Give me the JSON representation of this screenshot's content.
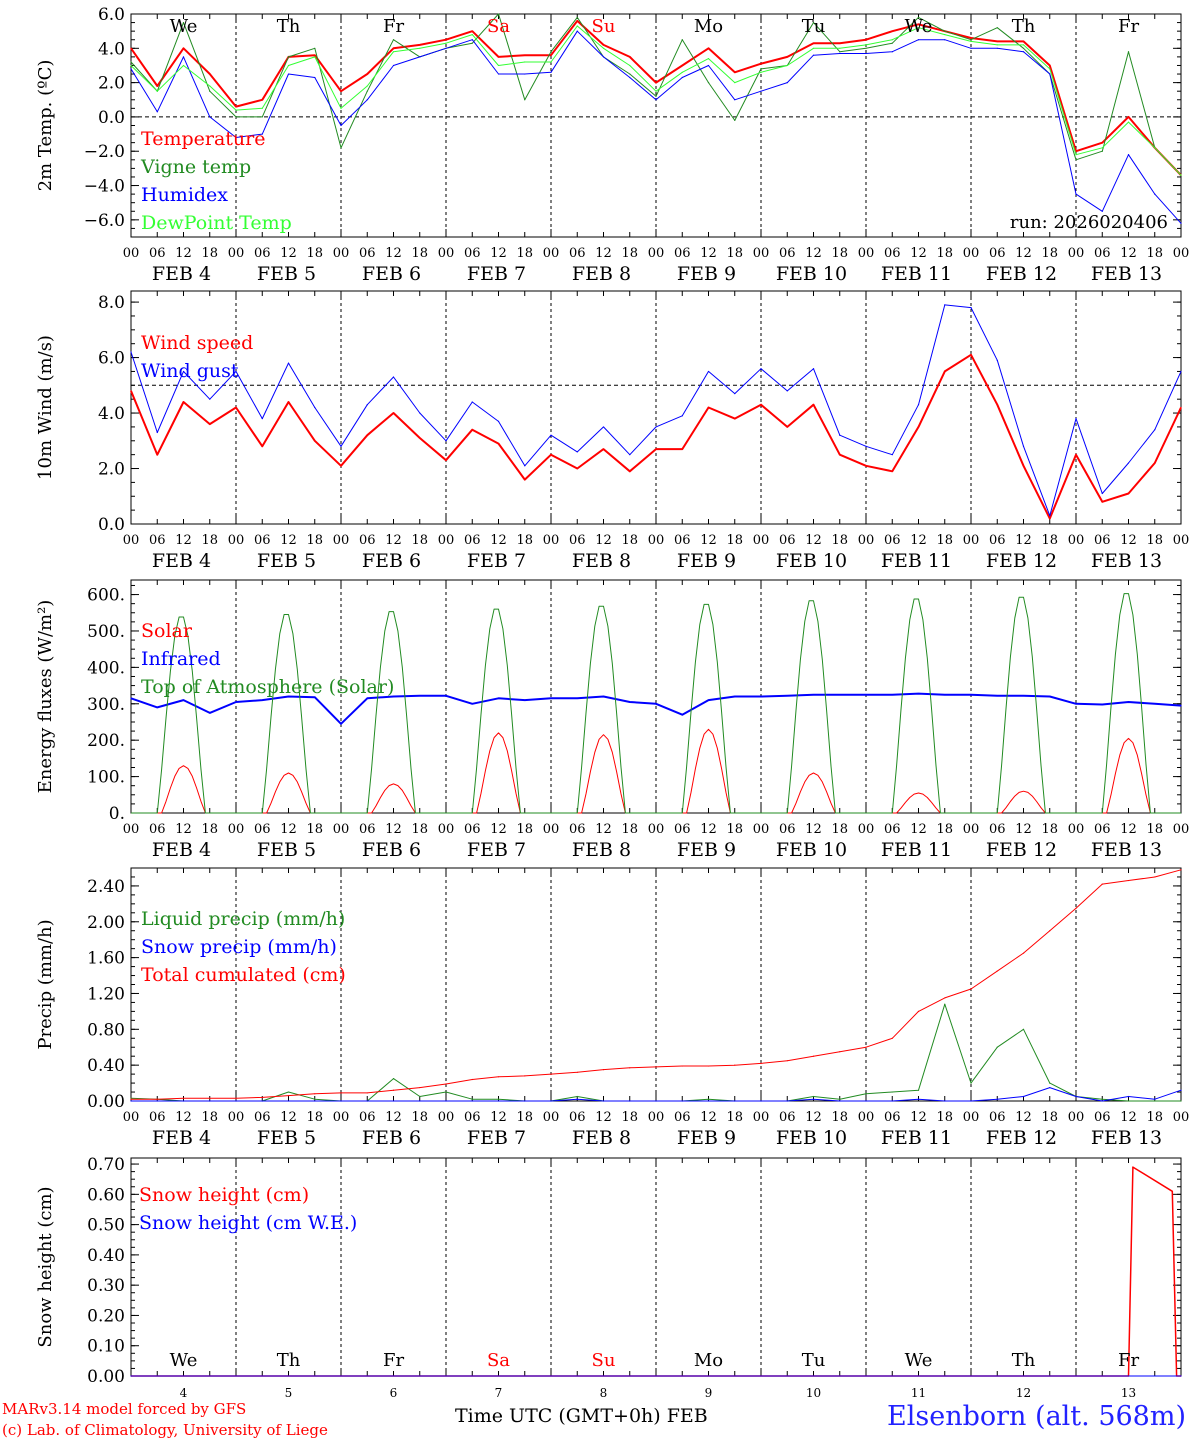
{
  "days": [
    "We",
    "Th",
    "Fr",
    "Sa",
    "Su",
    "Mo",
    "Tu",
    "We",
    "Th",
    "Fr"
  ],
  "weekend_color": "#ff0000",
  "date_labels": [
    "FEB  4",
    "FEB  5",
    "FEB  6",
    "FEB  7",
    "FEB  8",
    "FEB  9",
    "FEB 10",
    "FEB 11",
    "FEB 12",
    "FEB 13"
  ],
  "hour_ticks": [
    "00",
    "06",
    "12",
    "18"
  ],
  "final_hour_tick": "00",
  "bottom_day_numbers": [
    "4",
    "5",
    "6",
    "7",
    "8",
    "9",
    "10",
    "11",
    "12",
    "13"
  ],
  "footer": {
    "model": "MARv3.14 model forced by GFS",
    "credit": "(c) Lab. of Climatology, University of Liege",
    "axis_title": "Time UTC (GMT+0h) FEB",
    "station": "Elsenborn (alt. 568m)"
  },
  "chart_data": [
    {
      "type": "line",
      "ylabel": "2m Temp. (ºC)",
      "ylim": [
        -7,
        6
      ],
      "yticks": [
        "6.0",
        "4.0",
        "2.0",
        "0.0",
        "−2.0",
        "−4.0",
        "−6.0"
      ],
      "ytick_values": [
        6,
        4,
        2,
        0,
        -2,
        -4,
        -6
      ],
      "ref_line": 0,
      "run_label": "run: 2026020406",
      "x_hours": [
        0,
        6,
        12,
        18,
        24,
        30,
        36,
        42,
        48,
        54,
        60,
        66,
        72,
        78,
        84,
        90,
        96,
        102,
        108,
        114,
        120,
        126,
        132,
        138,
        144,
        150,
        156,
        162,
        168,
        174,
        180,
        186,
        192,
        198,
        204,
        210,
        216,
        222,
        228,
        234,
        240
      ],
      "series": [
        {
          "name": "Temperature",
          "color": "#ff0000",
          "width": 2,
          "values": [
            4.0,
            1.8,
            4.0,
            2.5,
            0.6,
            1.0,
            3.5,
            3.6,
            1.5,
            2.5,
            4.0,
            4.2,
            4.5,
            5.0,
            3.5,
            3.6,
            3.6,
            5.6,
            4.2,
            3.5,
            2.0,
            3.0,
            4.0,
            2.6,
            3.1,
            3.5,
            4.3,
            4.3,
            4.5,
            5.0,
            5.4,
            5.0,
            4.6,
            4.4,
            4.4,
            3.0,
            -2.0,
            -1.5,
            0.0,
            -1.8,
            -3.4
          ]
        },
        {
          "name": "Vigne temp",
          "color": "#228b22",
          "width": 1,
          "values": [
            3.2,
            1.5,
            5.5,
            1.5,
            0.0,
            0.0,
            3.5,
            4.0,
            -1.8,
            1.5,
            4.5,
            3.5,
            4.0,
            4.3,
            6.0,
            1.0,
            3.8,
            5.8,
            3.5,
            2.5,
            1.2,
            4.5,
            2.0,
            -0.2,
            2.8,
            3.0,
            5.5,
            3.8,
            4.0,
            4.3,
            5.8,
            5.0,
            4.5,
            5.2,
            4.0,
            2.5,
            -2.5,
            -2.0,
            3.8,
            -1.8,
            -3.4
          ]
        },
        {
          "name": "Humidex",
          "color": "#0000ff",
          "width": 1,
          "values": [
            2.8,
            0.3,
            3.5,
            0.0,
            -1.2,
            -1.0,
            2.5,
            2.3,
            -0.5,
            1.0,
            3.0,
            3.5,
            4.0,
            4.5,
            2.5,
            2.5,
            2.6,
            5.0,
            3.5,
            2.3,
            1.0,
            2.3,
            3.0,
            1.0,
            1.5,
            2.0,
            3.6,
            3.7,
            3.7,
            3.8,
            4.5,
            4.5,
            4.0,
            4.0,
            3.8,
            2.5,
            -4.5,
            -5.5,
            -2.2,
            -4.5,
            -6.2
          ]
        },
        {
          "name": "DewPoint Temp",
          "color": "#33ff33",
          "width": 1,
          "values": [
            3.0,
            1.5,
            3.0,
            1.8,
            0.4,
            0.5,
            3.0,
            3.5,
            0.5,
            1.8,
            3.8,
            4.0,
            4.3,
            4.8,
            3.0,
            3.2,
            3.2,
            5.3,
            4.0,
            3.0,
            1.5,
            2.6,
            3.4,
            2.0,
            2.6,
            3.0,
            4.0,
            4.0,
            4.2,
            4.5,
            5.2,
            4.8,
            4.4,
            4.2,
            4.2,
            2.8,
            -2.2,
            -1.8,
            -0.3,
            -1.8,
            -3.4
          ]
        }
      ]
    },
    {
      "type": "line",
      "ylabel": "10m Wind (m/s)",
      "ylim": [
        0,
        8.4
      ],
      "yticks": [
        "8.0",
        "6.0",
        "4.0",
        "2.0",
        "0.0"
      ],
      "ytick_values": [
        8,
        6,
        4,
        2,
        0
      ],
      "ref_line": 5,
      "x_hours": [
        0,
        6,
        12,
        18,
        24,
        30,
        36,
        42,
        48,
        54,
        60,
        66,
        72,
        78,
        84,
        90,
        96,
        102,
        108,
        114,
        120,
        126,
        132,
        138,
        144,
        150,
        156,
        162,
        168,
        174,
        180,
        186,
        192,
        198,
        204,
        210,
        216,
        222,
        228,
        234,
        240
      ],
      "series": [
        {
          "name": "Wind speed",
          "color": "#ff0000",
          "width": 2,
          "values": [
            4.8,
            2.5,
            4.4,
            3.6,
            4.2,
            2.8,
            4.4,
            3.0,
            2.1,
            3.2,
            4.0,
            3.1,
            2.3,
            3.4,
            2.9,
            1.6,
            2.5,
            2.0,
            2.7,
            1.9,
            2.7,
            2.7,
            4.2,
            3.8,
            4.3,
            3.5,
            4.3,
            2.5,
            2.1,
            1.9,
            3.5,
            5.5,
            6.1,
            4.3,
            2.1,
            0.2,
            2.5,
            0.8,
            1.1,
            2.2,
            4.2
          ]
        },
        {
          "name": "Wind gust",
          "color": "#0000ff",
          "width": 1,
          "values": [
            6.2,
            3.3,
            5.5,
            4.5,
            5.5,
            3.8,
            5.8,
            4.2,
            2.8,
            4.3,
            5.3,
            4.0,
            3.0,
            4.4,
            3.7,
            2.1,
            3.2,
            2.6,
            3.5,
            2.5,
            3.5,
            3.9,
            5.5,
            4.7,
            5.6,
            4.8,
            5.6,
            3.2,
            2.8,
            2.5,
            4.3,
            7.9,
            7.8,
            5.9,
            2.8,
            0.3,
            3.8,
            1.1,
            2.2,
            3.4,
            5.5
          ]
        }
      ]
    },
    {
      "type": "line",
      "ylabel": "Energy fluxes (W/m²)",
      "ylim": [
        0,
        640
      ],
      "yticks": [
        "600.",
        "500.",
        "400.",
        "300.",
        "200.",
        "100.",
        "0."
      ],
      "ytick_values": [
        600,
        500,
        400,
        300,
        200,
        100,
        0
      ],
      "series": [
        {
          "name": "Solar",
          "color": "#ff0000",
          "width": 1,
          "peaks": [
            130,
            110,
            80,
            220,
            215,
            230,
            110,
            55,
            60,
            205
          ]
        },
        {
          "name": "Infrared",
          "color": "#0000ff",
          "width": 2,
          "x_hours": [
            0,
            6,
            12,
            18,
            24,
            30,
            36,
            42,
            48,
            54,
            60,
            66,
            72,
            78,
            84,
            90,
            96,
            102,
            108,
            114,
            120,
            126,
            132,
            138,
            144,
            150,
            156,
            162,
            168,
            174,
            180,
            186,
            192,
            198,
            204,
            210,
            216,
            222,
            228,
            234,
            240
          ],
          "values": [
            315,
            290,
            310,
            275,
            305,
            310,
            320,
            318,
            245,
            315,
            320,
            322,
            322,
            300,
            315,
            310,
            315,
            315,
            320,
            305,
            300,
            270,
            310,
            320,
            320,
            322,
            325,
            325,
            325,
            325,
            328,
            325,
            325,
            322,
            322,
            320,
            300,
            298,
            305,
            300,
            295
          ]
        },
        {
          "name": "Top of Atmosphere (Solar)",
          "color": "#228b22",
          "width": 1,
          "peaks": [
            545,
            552,
            560,
            567,
            575,
            580,
            590,
            595,
            600,
            610
          ]
        }
      ]
    },
    {
      "type": "line",
      "ylabel": "Precip (mm/h)",
      "ylim": [
        0,
        2.6
      ],
      "yticks": [
        "2.40",
        "2.00",
        "1.60",
        "1.20",
        "0.80",
        "0.40",
        "0.00"
      ],
      "ytick_values": [
        2.4,
        2.0,
        1.6,
        1.2,
        0.8,
        0.4,
        0.0
      ],
      "x_hours": [
        0,
        6,
        12,
        18,
        24,
        30,
        36,
        42,
        48,
        54,
        60,
        66,
        72,
        78,
        84,
        90,
        96,
        102,
        108,
        114,
        120,
        126,
        132,
        138,
        144,
        150,
        156,
        162,
        168,
        174,
        180,
        186,
        192,
        198,
        204,
        210,
        216,
        222,
        228,
        234,
        240
      ],
      "series": [
        {
          "name": "Liquid precip (mm/h)",
          "color": "#228b22",
          "width": 1,
          "values": [
            0.03,
            0.02,
            0.0,
            0.0,
            0.0,
            0.0,
            0.1,
            0.02,
            0.0,
            0.0,
            0.25,
            0.05,
            0.1,
            0.02,
            0.02,
            0.0,
            0.0,
            0.05,
            0.0,
            0.0,
            0.0,
            0.0,
            0.02,
            0.0,
            0.0,
            0.0,
            0.05,
            0.02,
            0.08,
            0.1,
            0.12,
            1.08,
            0.2,
            0.6,
            0.8,
            0.2,
            0.05,
            0.02,
            0.0,
            0.0,
            0.0
          ]
        },
        {
          "name": "Snow precip (mm/h)",
          "color": "#0000ff",
          "width": 1,
          "values": [
            0.0,
            0.0,
            0.0,
            0.0,
            0.0,
            0.0,
            0.0,
            0.0,
            0.0,
            0.0,
            0.0,
            0.0,
            0.0,
            0.0,
            0.0,
            0.0,
            0.0,
            0.02,
            0.0,
            0.0,
            0.0,
            0.0,
            0.0,
            0.0,
            0.0,
            0.0,
            0.02,
            0.0,
            0.0,
            0.0,
            0.02,
            0.0,
            0.0,
            0.02,
            0.05,
            0.15,
            0.05,
            0.0,
            0.05,
            0.02,
            0.12
          ]
        },
        {
          "name": "Total cumulated (cm)",
          "color": "#ff0000",
          "width": 1,
          "values": [
            0.02,
            0.02,
            0.03,
            0.03,
            0.03,
            0.04,
            0.06,
            0.08,
            0.09,
            0.09,
            0.12,
            0.15,
            0.19,
            0.24,
            0.27,
            0.28,
            0.3,
            0.32,
            0.35,
            0.37,
            0.38,
            0.39,
            0.39,
            0.4,
            0.42,
            0.45,
            0.5,
            0.55,
            0.6,
            0.7,
            1.0,
            1.15,
            1.25,
            1.45,
            1.65,
            1.9,
            2.15,
            2.42,
            2.46,
            2.5,
            2.58
          ]
        }
      ]
    },
    {
      "type": "line",
      "ylabel": "Snow height (cm)",
      "ylim": [
        0,
        0.72
      ],
      "yticks": [
        "0.70",
        "0.60",
        "0.50",
        "0.40",
        "0.30",
        "0.20",
        "0.10",
        "0.00"
      ],
      "ytick_values": [
        0.7,
        0.6,
        0.5,
        0.4,
        0.3,
        0.2,
        0.1,
        0.0
      ],
      "series": [
        {
          "name": "Snow height (cm)",
          "color": "#ff0000",
          "width": 1.5,
          "x_hours": [
            0,
            228,
            229,
            238,
            239,
            240
          ],
          "values": [
            0,
            0,
            0.69,
            0.61,
            0,
            0
          ]
        },
        {
          "name": "Snow height (cm W.E.)",
          "color": "#0000ff",
          "width": 1,
          "x_hours": [
            0,
            240
          ],
          "values": [
            0,
            0
          ]
        }
      ]
    }
  ]
}
